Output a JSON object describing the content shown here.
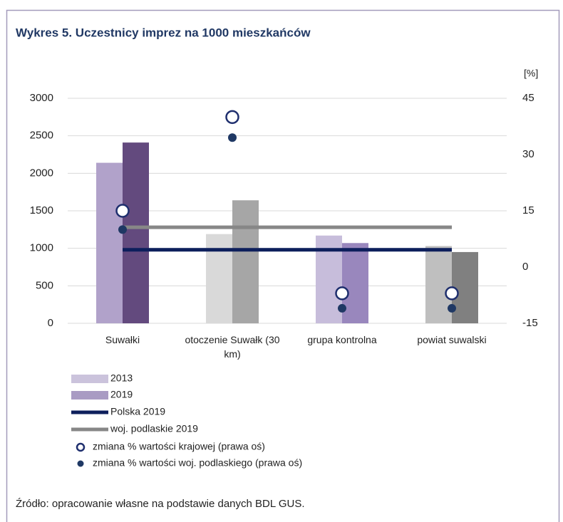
{
  "chart_data": {
    "type": "bar",
    "title": "Wykres 5. Uczestnicy imprez na 1000 mieszkańców",
    "y2_label": "[%]",
    "source": "Źródło: opracowanie własne na podstawie danych BDL GUS.",
    "categories": [
      "Suwałki",
      "otoczenie Suwałk (30 km)",
      "grupa kontrolna",
      "powiat suwalski"
    ],
    "ylim": [
      0,
      3000
    ],
    "yticks": [
      0,
      500,
      1000,
      1500,
      2000,
      2500,
      3000
    ],
    "y2lim": [
      -15,
      45
    ],
    "y2ticks": [
      -15,
      0,
      15,
      30,
      45
    ],
    "grid": true,
    "series": [
      {
        "name": "2013",
        "type": "bar",
        "color": "#cbc3dc",
        "colors": [
          "#b1a2ca",
          "#d9d9d9",
          "#c7bddb",
          "#bfbfbf"
        ],
        "values": [
          2140,
          1190,
          1170,
          1030
        ]
      },
      {
        "name": "2019",
        "type": "bar",
        "color": "#a99bc3",
        "colors": [
          "#634a7e",
          "#a6a6a6",
          "#9987bd",
          "#808080"
        ],
        "values": [
          2410,
          1640,
          1070,
          950
        ]
      },
      {
        "name": "Polska 2019",
        "type": "line",
        "color": "#0d1f5c",
        "values": [
          980,
          980,
          980,
          980
        ]
      },
      {
        "name": "woj. podlaskie 2019",
        "type": "line",
        "color": "#878787",
        "values": [
          1280,
          1280,
          1280,
          1280
        ]
      },
      {
        "name": "zmiana % wartości krajowej (prawa oś)",
        "type": "scatter",
        "marker": "open",
        "axis": "y2",
        "color": "#1f2f6e",
        "values": [
          15,
          40,
          -7,
          -7
        ]
      },
      {
        "name": "zmiana % wartości woj. podlaskiego (prawa oś)",
        "type": "scatter",
        "marker": "filled",
        "axis": "y2",
        "color": "#1f3864",
        "values": [
          10,
          34.5,
          -11,
          -11
        ]
      }
    ]
  }
}
